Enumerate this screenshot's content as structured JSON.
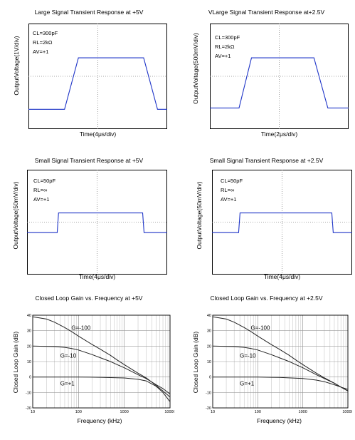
{
  "panels": [
    {
      "title": "Large Signal Transient Response at +5V",
      "ylabel": "OutputVoltage(1V/div)",
      "xlabel": "Time(4μs/div)",
      "conditions": [
        "CL=300pF",
        "RL=2kΩ",
        "AV=+1"
      ]
    },
    {
      "title": "VLarge Signal Transient Response at+2.5V",
      "ylabel": "OutputVoltage(500mV/div)",
      "xlabel": "Time(2μs/div)",
      "conditions": [
        "CL=300pF",
        "RL=2kΩ",
        "AV=+1"
      ]
    },
    {
      "title": "Small Signal Transient Response at +5V",
      "ylabel": "OutputVoltage(50mV/div)",
      "xlabel": "Time(4μs/div)",
      "conditions": [
        "CL=50pF",
        "RL=∞",
        "AV=+1"
      ]
    },
    {
      "title": "Small Signal Transient Response at +2.5V",
      "ylabel": "OutputVoltage(50mV/div)",
      "xlabel": "Time(4μs/div)",
      "conditions": [
        "CL=50pF",
        "RL=∞",
        "AV=+1"
      ]
    },
    {
      "title": "Closed Loop Gain vs. Frequency at +5V",
      "ylabel": "Closed Loop Gain (dB)",
      "xlabel": "Frequency (kHz)"
    },
    {
      "title": "Closed Loop Gain vs. Frequency at +2.5V",
      "ylabel": "Closed Loop Gain (dB)",
      "xlabel": "Frequency (kHz)"
    }
  ],
  "chart_data": [
    {
      "type": "line",
      "title": "Large Signal Transient Response at +5V",
      "xlabel": "Time(4μs/div)",
      "ylabel": "OutputVoltage(1V/div)",
      "grid": "dotted center crosshair",
      "xlim": [
        0,
        10
      ],
      "ylim": [
        0,
        8
      ],
      "trace_color": "#1f35c8",
      "x": [
        0,
        2.6,
        3.6,
        8.3,
        9.3,
        10
      ],
      "y": [
        1.5,
        1.5,
        5.4,
        5.4,
        1.5,
        1.5
      ]
    },
    {
      "type": "line",
      "title": "VLarge Signal Transient Response at+2.5V",
      "xlabel": "Time(2μs/div)",
      "ylabel": "OutputVoltage(500mV/div)",
      "grid": "dotted center crosshair",
      "xlim": [
        0,
        10
      ],
      "ylim": [
        0,
        8
      ],
      "trace_color": "#1f35c8",
      "x": [
        0,
        2.1,
        3.0,
        7.5,
        8.5,
        10
      ],
      "y": [
        1.6,
        1.6,
        5.4,
        5.4,
        1.6,
        1.6
      ]
    },
    {
      "type": "line",
      "title": "Small Signal Transient Response at +5V",
      "xlabel": "Time(4μs/div)",
      "ylabel": "OutputVoltage(50mV/div)",
      "grid": "dotted center crosshair",
      "xlim": [
        0,
        10
      ],
      "ylim": [
        0,
        8
      ],
      "trace_color": "#1f35c8",
      "x": [
        0,
        2.15,
        2.25,
        8.25,
        8.35,
        10
      ],
      "y": [
        3.2,
        3.2,
        4.7,
        4.7,
        3.2,
        3.2
      ]
    },
    {
      "type": "line",
      "title": "Small Signal Transient Response at +2.5V",
      "xlabel": "Time(4μs/div)",
      "ylabel": "OutputVoltage(50mV/div)",
      "grid": "dotted center crosshair",
      "xlim": [
        0,
        10
      ],
      "ylim": [
        0,
        8
      ],
      "trace_color": "#1f35c8",
      "x": [
        0,
        1.9,
        2.0,
        8.55,
        8.65,
        10
      ],
      "y": [
        3.2,
        3.2,
        4.7,
        4.7,
        3.2,
        3.2
      ]
    },
    {
      "type": "line",
      "title": "Closed Loop Gain vs. Frequency at +5V",
      "xlabel": "Frequency (kHz)",
      "ylabel": "Closed Loop Gain (dB)",
      "xscale": "log",
      "xlim": [
        10,
        10000
      ],
      "ylim": [
        -20,
        40
      ],
      "xticks": [
        "10",
        "100",
        "1000",
        "10000"
      ],
      "yticks": [
        "40",
        "30",
        "20",
        "10",
        "0",
        "-10",
        "-20"
      ],
      "grid": true,
      "series": [
        {
          "name": "G=-100",
          "x": [
            10,
            20,
            30,
            50,
            70,
            100,
            200,
            300,
            500,
            700,
            1000,
            2000,
            3000,
            5000,
            7000,
            10000
          ],
          "y": [
            39,
            37.5,
            35.5,
            32,
            29.5,
            26.5,
            21,
            18,
            14,
            11,
            8,
            2.5,
            -0.5,
            -5.5,
            -9,
            -13
          ]
        },
        {
          "name": "G=-10",
          "x": [
            10,
            30,
            50,
            70,
            100,
            200,
            300,
            500,
            700,
            1000,
            2000,
            3000,
            5000,
            7000,
            10000
          ],
          "y": [
            20,
            19.7,
            19.2,
            18.5,
            17.5,
            14.5,
            12.5,
            10,
            8,
            6,
            1.5,
            -1,
            -5,
            -7.5,
            -11
          ]
        },
        {
          "name": "G=+1",
          "x": [
            10,
            100,
            300,
            1000,
            2000,
            3000,
            5000,
            7000,
            10000
          ],
          "y": [
            0,
            0,
            -0.2,
            -0.6,
            -1.5,
            -2.5,
            -6,
            -10,
            -16
          ]
        }
      ]
    },
    {
      "type": "line",
      "title": "Closed Loop Gain vs. Frequency at +2.5V",
      "xlabel": "Frequency (kHz)",
      "ylabel": "Closed Loop Gain (dB)",
      "xscale": "log",
      "xlim": [
        10,
        10000
      ],
      "ylim": [
        -20,
        40
      ],
      "xticks": [
        "10",
        "100",
        "1000",
        "10000"
      ],
      "yticks": [
        "40",
        "30",
        "20",
        "10",
        "0",
        "-10",
        "-20"
      ],
      "grid": true,
      "series": [
        {
          "name": "G=-100",
          "x": [
            10,
            20,
            30,
            50,
            70,
            100,
            200,
            300,
            500,
            700,
            1000,
            2000,
            3000,
            5000,
            7000,
            10000
          ],
          "y": [
            39,
            37.5,
            35.5,
            32,
            29.5,
            26.5,
            21,
            18,
            14,
            11,
            8,
            2.5,
            -0.5,
            -4,
            -6.5,
            -9
          ]
        },
        {
          "name": "G=-10",
          "x": [
            10,
            30,
            50,
            70,
            100,
            200,
            300,
            500,
            700,
            1000,
            2000,
            3000,
            5000,
            7000,
            10000
          ],
          "y": [
            20,
            19.7,
            19.2,
            18.5,
            17.5,
            14.5,
            12.5,
            10,
            8,
            6,
            1.5,
            -1,
            -4,
            -6.5,
            -9
          ]
        },
        {
          "name": "G=+1",
          "x": [
            10,
            100,
            300,
            1000,
            2000,
            3000,
            5000,
            7000,
            10000
          ],
          "y": [
            0,
            0,
            -0.3,
            -1,
            -2,
            -3,
            -5,
            -6.5,
            -8
          ]
        }
      ]
    }
  ]
}
